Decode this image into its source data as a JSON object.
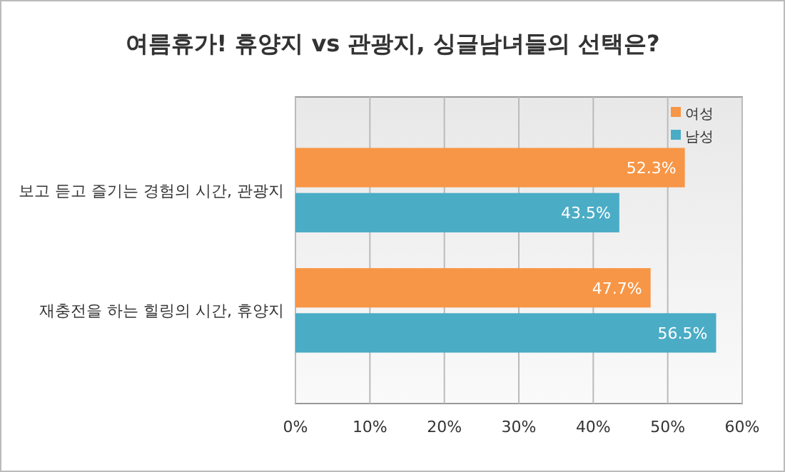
{
  "chart_data": {
    "type": "bar",
    "orientation": "horizontal",
    "title": "여름휴가! 휴양지 vs 관광지, 싱글남녀들의 선택은?",
    "categories": [
      "보고 듣고 즐기는 경험의 시간, 관광지",
      "재충전을 하는 힐링의 시간, 휴양지"
    ],
    "series": [
      {
        "name": "여성",
        "color": "#f79646",
        "values": [
          52.3,
          47.7
        ],
        "value_labels": [
          "52.3%",
          "47.7%"
        ]
      },
      {
        "name": "남성",
        "color": "#4bacc6",
        "values": [
          43.5,
          56.5
        ],
        "value_labels": [
          "43.5%",
          "56.5%"
        ]
      }
    ],
    "xlim": [
      0,
      60
    ],
    "xticks": [
      {
        "value": 0,
        "label": "0%"
      },
      {
        "value": 10,
        "label": "10%"
      },
      {
        "value": 20,
        "label": "20%"
      },
      {
        "value": 30,
        "label": "30%"
      },
      {
        "value": 40,
        "label": "40%"
      },
      {
        "value": 50,
        "label": "50%"
      },
      {
        "value": 60,
        "label": "60%"
      }
    ],
    "grid": true,
    "legend": "top right"
  }
}
